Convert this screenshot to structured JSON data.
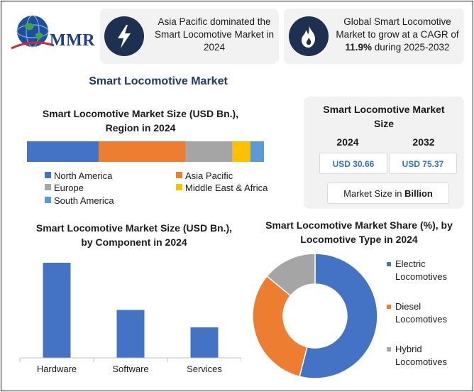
{
  "logo": {
    "text": "MMR"
  },
  "highlights": [
    {
      "text": "Asia Pacific dominated the Smart Locomotive Market in 2024",
      "icon": "lightning-icon"
    },
    {
      "text_before": "Global Smart Locomotive Market to grow at a CAGR of ",
      "text_bold": "11.9%",
      "text_after": " during 2025-2032",
      "icon": "fire-icon"
    }
  ],
  "main_title": "Smart Locomotive Market",
  "market_size_panel": {
    "title": "Smart Locomotive Market Size",
    "years": [
      "2024",
      "2032"
    ],
    "values": [
      "USD 30.66",
      "USD 75.37"
    ],
    "note_before": "Market Size in ",
    "note_bold": "Billion"
  },
  "colors": {
    "north_america": "#4472c4",
    "asia_pacific": "#ed7d31",
    "europe": "#a5a5a5",
    "middle_east_africa": "#ffc000",
    "south_america": "#5b9bd5"
  },
  "chart_data": [
    {
      "type": "bar",
      "orientation": "horizontal-stacked",
      "title": "Smart Locomotive Market Size (USD Bn.), Region in 2024",
      "series": [
        {
          "name": "North America",
          "value": 22.6,
          "color": "#4472c4"
        },
        {
          "name": "Asia Pacific",
          "value": 27.4,
          "color": "#ed7d31"
        },
        {
          "name": "Europe",
          "value": 14.8,
          "color": "#a5a5a5"
        },
        {
          "name": "Middle East & Africa",
          "value": 5.6,
          "color": "#ffc000"
        },
        {
          "name": "South America",
          "value": 4.3,
          "color": "#5b9bd5"
        }
      ],
      "legend_position": "bottom"
    },
    {
      "type": "bar",
      "title": "Smart Locomotive Market Size (USD Bn.), by Component in 2024",
      "categories": [
        "Hardware",
        "Software",
        "Services"
      ],
      "values": [
        100,
        50.4,
        32.1
      ],
      "color": "#4472c4",
      "ylim": [
        0,
        100
      ],
      "grid": false
    },
    {
      "type": "pie",
      "variant": "donut",
      "title": "Smart Locomotive Market Share (%), by Locomotive Type  in 2024",
      "labels": [
        "Electric Locomotives",
        "Diesel Locomotives",
        "Hybrid Locomotives"
      ],
      "values": [
        54,
        32,
        14
      ],
      "colors": [
        "#4472c4",
        "#ed7d31",
        "#a5a5a5"
      ],
      "legend_position": "right"
    }
  ]
}
